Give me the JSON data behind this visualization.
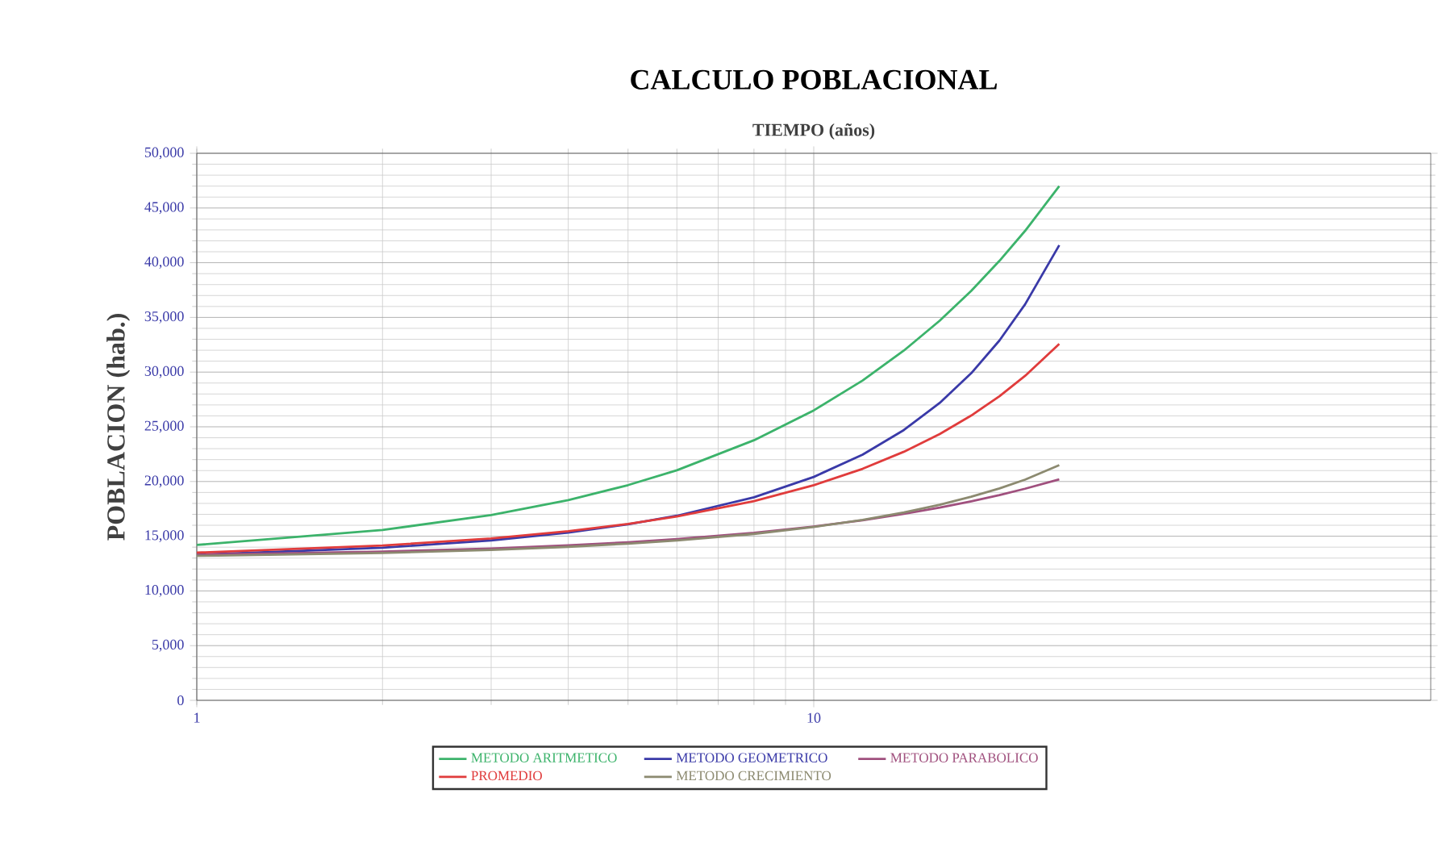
{
  "chart_data": {
    "type": "line",
    "title": "CALCULO POBLACIONAL",
    "xlabel": "TIEMPO (años)",
    "ylabel": "POBLACION (hab.)",
    "log": "x",
    "xlim": [
      1,
      100
    ],
    "xticks": [
      1,
      10
    ],
    "ylim": [
      0,
      50000
    ],
    "yticks": [
      0,
      {
        "value": 5000,
        "label": "5,000"
      },
      {
        "value": 10000,
        "label": "10,000"
      },
      {
        "value": 15000,
        "label": "15,000"
      },
      {
        "value": 20000,
        "label": "20,000"
      },
      {
        "value": 25000,
        "label": "25,000"
      },
      {
        "value": 30000,
        "label": "30,000"
      },
      {
        "value": 35000,
        "label": "35,000"
      },
      {
        "value": 40000,
        "label": "40,000"
      },
      {
        "value": 45000,
        "label": "45,000"
      },
      {
        "value": 50000,
        "label": "50,000"
      }
    ],
    "grid": true,
    "legend": "bottom",
    "marker": "none",
    "line_style": "solid",
    "x": [
      1,
      2,
      3,
      4,
      5,
      6,
      8,
      10,
      12,
      14,
      16,
      18,
      20,
      22,
      25
    ],
    "series": [
      {
        "name": "METODO ARITMETICO",
        "color": "#3cb36b",
        "values": [
          14200,
          15570,
          16930,
          18300,
          19670,
          21030,
          23770,
          26500,
          29230,
          31970,
          34700,
          37430,
          40170,
          42900,
          47000
        ]
      },
      {
        "name": "METODO GEOMETRICO",
        "color": "#3a3aa8",
        "values": [
          13300,
          13950,
          14620,
          15340,
          16090,
          16870,
          18560,
          20420,
          22460,
          24710,
          27180,
          29900,
          32890,
          36180,
          41600
        ]
      },
      {
        "name": "METODO PARABOLICO",
        "color": "#a0507e",
        "values": [
          13300,
          13590,
          13880,
          14160,
          14450,
          14740,
          15310,
          15890,
          16460,
          17040,
          17610,
          18190,
          18760,
          19340,
          20200
        ]
      },
      {
        "name": "PROMEDIO",
        "color": "#e03c3c",
        "values": [
          13500,
          14150,
          14800,
          15460,
          16130,
          16810,
          18210,
          19660,
          21160,
          22720,
          24340,
          26030,
          27800,
          29650,
          32580
        ]
      },
      {
        "name": "METODO CRECIMIENTO",
        "color": "#8c8a70",
        "values": [
          13200,
          13470,
          13750,
          14030,
          14320,
          14610,
          15210,
          15840,
          16490,
          17170,
          17870,
          18610,
          19370,
          20170,
          21500
        ]
      }
    ]
  }
}
